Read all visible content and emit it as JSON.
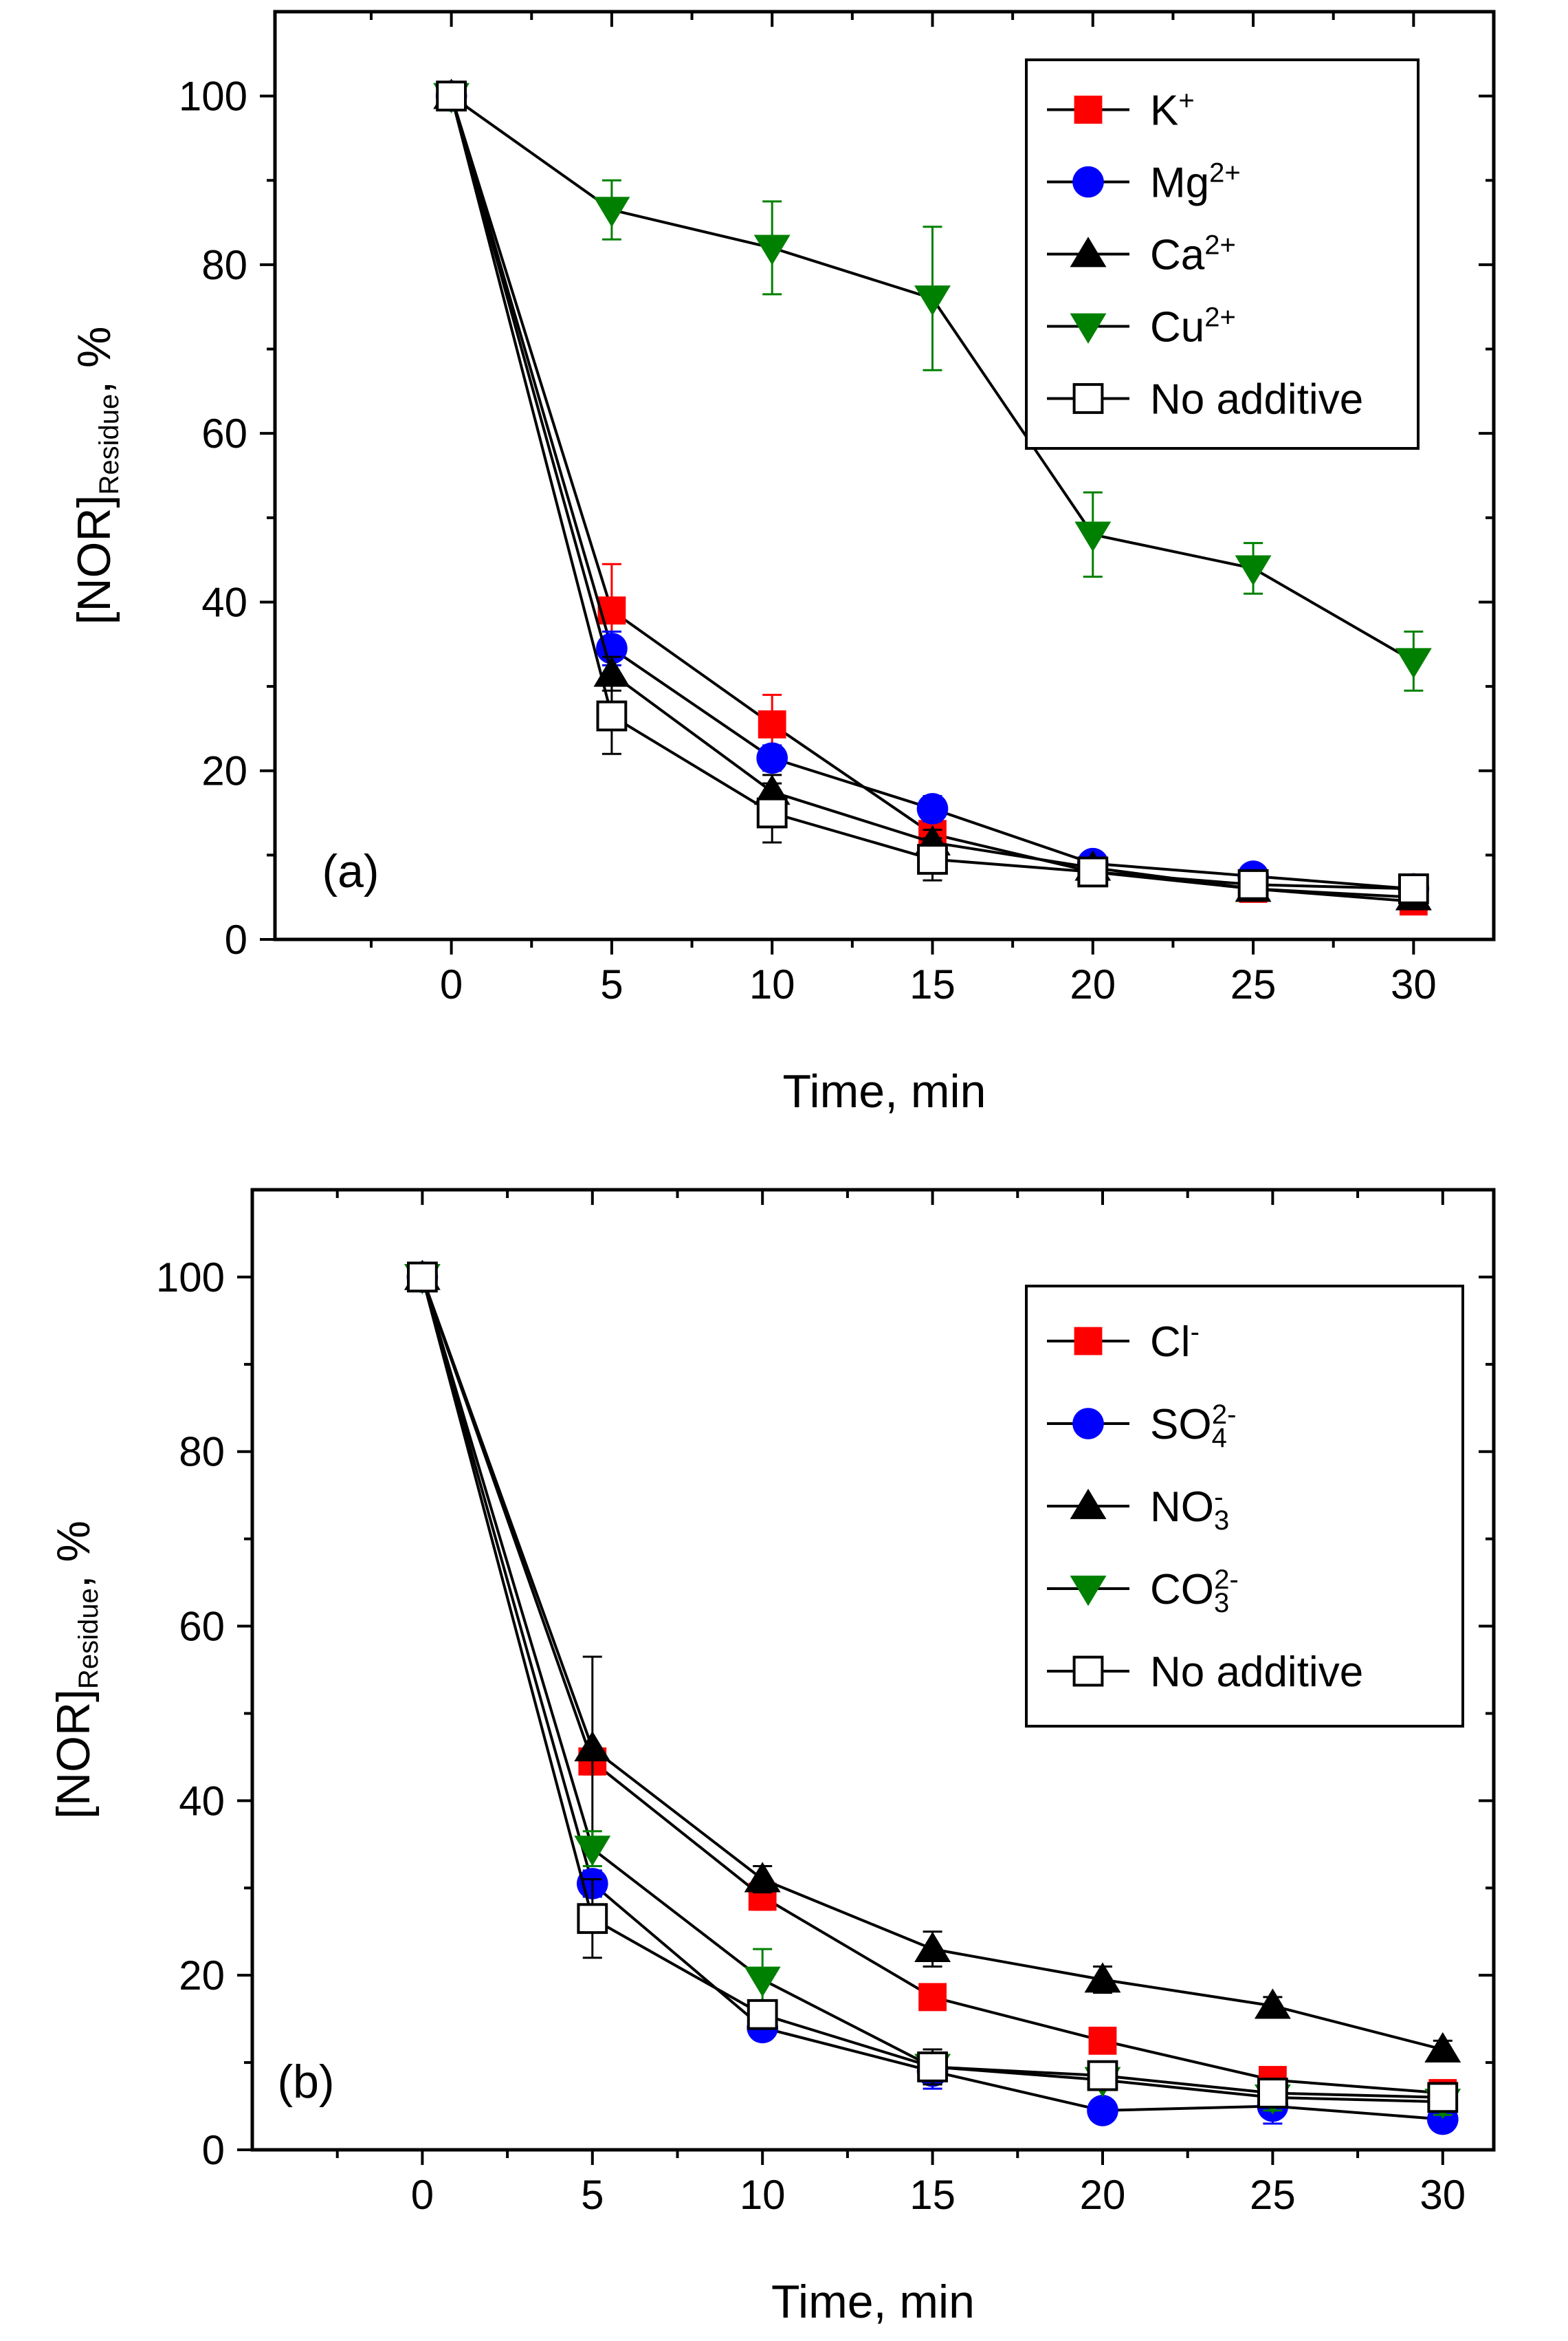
{
  "chart_data": [
    {
      "type": "line",
      "panel_label": "(a)",
      "xlabel": "Time, min",
      "ylabel": {
        "main": "[NOR]",
        "sub": "Residue",
        "suffix": ", %"
      },
      "xlim": [
        -5.5,
        32.5
      ],
      "ylim": [
        0,
        110
      ],
      "x_ticks": [
        0,
        5,
        10,
        15,
        20,
        25,
        30
      ],
      "y_ticks": [
        0,
        20,
        40,
        60,
        80,
        100
      ],
      "x": [
        0,
        5,
        10,
        15,
        20,
        25,
        30
      ],
      "legend_position": "top-right",
      "series": [
        {
          "name": "K",
          "sup": "+",
          "sub": "",
          "color": "#ff0000",
          "marker": "square",
          "filled": true,
          "values": [
            100,
            39,
            25.5,
            12.5,
            8,
            6,
            4.5
          ],
          "errors": [
            0,
            5.5,
            3.5,
            2,
            1.5,
            1,
            1
          ]
        },
        {
          "name": "Mg",
          "sup": "2+",
          "sub": "",
          "color": "#0000ff",
          "marker": "circle",
          "filled": true,
          "values": [
            100,
            34.5,
            21.5,
            15.5,
            9,
            7.5,
            6
          ],
          "errors": [
            0,
            2,
            1.5,
            1.5,
            1,
            1,
            1
          ]
        },
        {
          "name": "Ca",
          "sup": "2+",
          "sub": "",
          "color": "#000000",
          "marker": "triangle-up",
          "filled": true,
          "values": [
            100,
            31.5,
            17.5,
            11.5,
            8.5,
            6,
            5
          ],
          "errors": [
            0,
            2,
            2,
            1.5,
            1,
            1,
            1
          ]
        },
        {
          "name": "Cu",
          "sup": "2+",
          "sub": "",
          "color": "#008000",
          "marker": "triangle-down",
          "filled": true,
          "values": [
            100,
            86.5,
            82,
            76,
            48,
            44,
            33
          ],
          "errors": [
            0,
            3.5,
            5.5,
            8.5,
            5,
            3,
            3.5
          ]
        },
        {
          "name": "No additive",
          "sup": "",
          "sub": "",
          "color": "#000000",
          "marker": "square",
          "filled": false,
          "values": [
            100,
            26.5,
            15,
            9.5,
            8,
            6.5,
            6
          ],
          "errors": [
            0,
            4.5,
            3.5,
            2.5,
            1.5,
            1,
            1
          ]
        }
      ]
    },
    {
      "type": "line",
      "panel_label": "(b)",
      "xlabel": "Time, min",
      "ylabel": {
        "main": "[NOR]",
        "sub": "Residue",
        "suffix": ", %"
      },
      "xlim": [
        -5,
        31.5
      ],
      "ylim": [
        0,
        110
      ],
      "x_ticks": [
        0,
        5,
        10,
        15,
        20,
        25,
        30
      ],
      "y_ticks": [
        0,
        20,
        40,
        60,
        80,
        100
      ],
      "x": [
        0,
        5,
        10,
        15,
        20,
        25,
        30
      ],
      "legend_position": "top-right",
      "series": [
        {
          "name": "Cl",
          "sup": "-",
          "sub": "",
          "color": "#ff0000",
          "marker": "square",
          "filled": true,
          "values": [
            100,
            44.5,
            29,
            17.5,
            12.5,
            8,
            6.5
          ],
          "errors": [
            0,
            1.5,
            1.5,
            1,
            1,
            1,
            1
          ]
        },
        {
          "name": "SO",
          "sup": "2-",
          "sub": "4",
          "color": "#0000ff",
          "marker": "circle",
          "filled": true,
          "values": [
            100,
            30.5,
            14,
            9,
            4.5,
            5,
            3.5
          ],
          "errors": [
            0,
            1.5,
            1,
            2,
            1,
            2,
            1
          ]
        },
        {
          "name": "NO",
          "sup": "-",
          "sub": "3",
          "color": "#000000",
          "marker": "triangle-up",
          "filled": true,
          "values": [
            100,
            46,
            31,
            23,
            19.5,
            16.5,
            11.5
          ],
          "errors": [
            0,
            10.5,
            1.5,
            2,
            1.5,
            1,
            1
          ]
        },
        {
          "name": "CO",
          "sup": "2-",
          "sub": "3",
          "color": "#008000",
          "marker": "triangle-down",
          "filled": true,
          "values": [
            100,
            34.5,
            19.5,
            9.5,
            8,
            6,
            5.5
          ],
          "errors": [
            0,
            2,
            3.5,
            2,
            1,
            1.5,
            1.5
          ]
        },
        {
          "name": "No additive",
          "sup": "",
          "sub": "",
          "color": "#000000",
          "marker": "square",
          "filled": false,
          "values": [
            100,
            26.5,
            15.5,
            9.5,
            8.5,
            6.5,
            6
          ],
          "errors": [
            0,
            4.5,
            1.5,
            2,
            1,
            1,
            1
          ]
        }
      ]
    }
  ]
}
